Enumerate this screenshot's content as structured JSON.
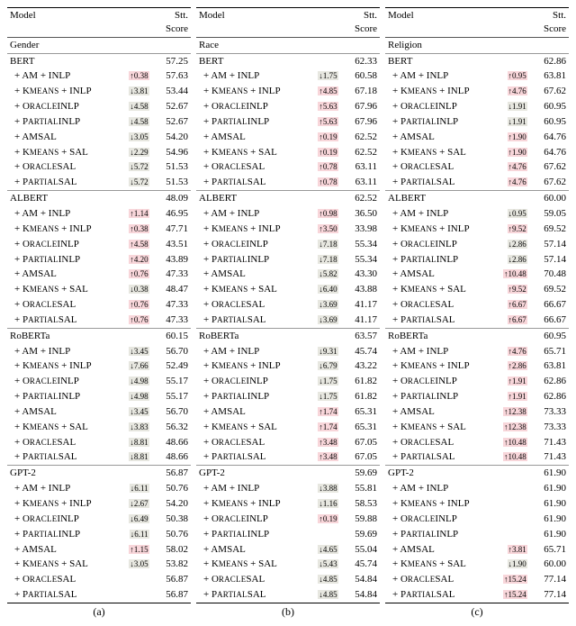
{
  "columns": [
    {
      "id": "a",
      "caption": "(a)",
      "category": "Gender"
    },
    {
      "id": "b",
      "caption": "(b)",
      "category": "Race"
    },
    {
      "id": "c",
      "caption": "(c)",
      "category": "Religion"
    }
  ],
  "header": {
    "model": "Model",
    "score": "Stt. Score"
  },
  "methods": [
    {
      "key": "base",
      "label": "",
      "base": true
    },
    {
      "key": "am_inlp",
      "label": "+ AM + INLP"
    },
    {
      "key": "kmeans_inlp",
      "label": "+ KMEANS + INLP",
      "sc": true,
      "sc_text": " + INLP"
    },
    {
      "key": "oracle_inlp",
      "label": "+ ORACLEINLP",
      "sc": true
    },
    {
      "key": "partial_inlp",
      "label": "+ PARTIALINLP",
      "sc": true
    },
    {
      "key": "amsal",
      "label": "+ AMSAL"
    },
    {
      "key": "kmeans_sal",
      "label": "+ KMEANS + SAL",
      "sc": true,
      "sc_text": " + SAL"
    },
    {
      "key": "oracle_sal",
      "label": "+ ORACLESAL",
      "sc": true
    },
    {
      "key": "partial_sal",
      "label": "+ PARTIALSAL",
      "sc": true
    }
  ],
  "models": [
    "BERT",
    "ALBERT",
    "RoBERTa",
    "GPT-2"
  ],
  "data": {
    "a": {
      "BERT": {
        "base": {
          "score": "57.25"
        },
        "am_inlp": {
          "delta": "0.38",
          "dir": "up",
          "bg": "pink",
          "score": "57.63"
        },
        "kmeans_inlp": {
          "delta": "3.81",
          "dir": "down",
          "bg": "gray",
          "score": "53.44"
        },
        "oracle_inlp": {
          "delta": "4.58",
          "dir": "down",
          "bg": "gray",
          "score": "52.67"
        },
        "partial_inlp": {
          "delta": "4.58",
          "dir": "down",
          "bg": "gray",
          "score": "52.67"
        },
        "amsal": {
          "delta": "3.05",
          "dir": "down",
          "bg": "gray",
          "score": "54.20"
        },
        "kmeans_sal": {
          "delta": "2.29",
          "dir": "down",
          "bg": "gray",
          "score": "54.96"
        },
        "oracle_sal": {
          "delta": "5.72",
          "dir": "down",
          "bg": "gray",
          "score": "51.53"
        },
        "partial_sal": {
          "delta": "5.72",
          "dir": "down",
          "bg": "gray",
          "score": "51.53"
        }
      },
      "ALBERT": {
        "base": {
          "score": "48.09"
        },
        "am_inlp": {
          "delta": "1.14",
          "dir": "up",
          "bg": "pink",
          "score": "46.95"
        },
        "kmeans_inlp": {
          "delta": "0.38",
          "dir": "up",
          "bg": "pink",
          "score": "47.71"
        },
        "oracle_inlp": {
          "delta": "4.58",
          "dir": "up",
          "bg": "pink",
          "score": "43.51"
        },
        "partial_inlp": {
          "delta": "4.20",
          "dir": "up",
          "bg": "pink",
          "score": "43.89"
        },
        "amsal": {
          "delta": "0.76",
          "dir": "up",
          "bg": "pink",
          "score": "47.33"
        },
        "kmeans_sal": {
          "delta": "0.38",
          "dir": "down",
          "bg": "gray",
          "score": "48.47"
        },
        "oracle_sal": {
          "delta": "0.76",
          "dir": "up",
          "bg": "pink",
          "score": "47.33"
        },
        "partial_sal": {
          "delta": "0.76",
          "dir": "up",
          "bg": "pink",
          "score": "47.33"
        }
      },
      "RoBERTa": {
        "base": {
          "score": "60.15"
        },
        "am_inlp": {
          "delta": "3.45",
          "dir": "down",
          "bg": "gray",
          "score": "56.70"
        },
        "kmeans_inlp": {
          "delta": "7.66",
          "dir": "down",
          "bg": "gray",
          "score": "52.49"
        },
        "oracle_inlp": {
          "delta": "4.98",
          "dir": "down",
          "bg": "gray",
          "score": "55.17"
        },
        "partial_inlp": {
          "delta": "4.98",
          "dir": "down",
          "bg": "gray",
          "score": "55.17"
        },
        "amsal": {
          "delta": "3.45",
          "dir": "down",
          "bg": "gray",
          "score": "56.70"
        },
        "kmeans_sal": {
          "delta": "3.83",
          "dir": "down",
          "bg": "gray",
          "score": "56.32"
        },
        "oracle_sal": {
          "delta": "8.81",
          "dir": "down",
          "bg": "gray",
          "score": "48.66"
        },
        "partial_sal": {
          "delta": "8.81",
          "dir": "down",
          "bg": "gray",
          "score": "48.66"
        }
      },
      "GPT-2": {
        "base": {
          "score": "56.87"
        },
        "am_inlp": {
          "delta": "6.11",
          "dir": "down",
          "bg": "gray",
          "score": "50.76"
        },
        "kmeans_inlp": {
          "delta": "2.67",
          "dir": "down",
          "bg": "gray",
          "score": "54.20"
        },
        "oracle_inlp": {
          "delta": "6.49",
          "dir": "down",
          "bg": "gray",
          "score": "50.38"
        },
        "partial_inlp": {
          "delta": "6.11",
          "dir": "down",
          "bg": "gray",
          "score": "50.76"
        },
        "amsal": {
          "delta": "1.15",
          "dir": "up",
          "bg": "pink",
          "score": "58.02"
        },
        "kmeans_sal": {
          "delta": "3.05",
          "dir": "down",
          "bg": "gray",
          "score": "53.82"
        },
        "oracle_sal": {
          "delta": "",
          "dir": "",
          "bg": "",
          "score": "56.87"
        },
        "partial_sal": {
          "delta": "",
          "dir": "",
          "bg": "",
          "score": "56.87"
        }
      }
    },
    "b": {
      "BERT": {
        "base": {
          "score": "62.33"
        },
        "am_inlp": {
          "delta": "1.75",
          "dir": "down",
          "bg": "gray",
          "score": "60.58"
        },
        "kmeans_inlp": {
          "delta": "4.85",
          "dir": "up",
          "bg": "pink",
          "score": "67.18"
        },
        "oracle_inlp": {
          "delta": "5.63",
          "dir": "up",
          "bg": "pink",
          "score": "67.96"
        },
        "partial_inlp": {
          "delta": "5.63",
          "dir": "up",
          "bg": "pink",
          "score": "67.96"
        },
        "amsal": {
          "delta": "0.19",
          "dir": "up",
          "bg": "pink",
          "score": "62.52"
        },
        "kmeans_sal": {
          "delta": "0.19",
          "dir": "up",
          "bg": "pink",
          "score": "62.52"
        },
        "oracle_sal": {
          "delta": "0.78",
          "dir": "up",
          "bg": "pink",
          "score": "63.11"
        },
        "partial_sal": {
          "delta": "0.78",
          "dir": "up",
          "bg": "pink",
          "score": "63.11"
        }
      },
      "ALBERT": {
        "base": {
          "score": "62.52"
        },
        "am_inlp": {
          "delta": "0.98",
          "dir": "up",
          "bg": "pink",
          "score": "36.50"
        },
        "kmeans_inlp": {
          "delta": "3.50",
          "dir": "up",
          "bg": "pink",
          "score": "33.98"
        },
        "oracle_inlp": {
          "delta": "7.18",
          "dir": "down",
          "bg": "gray",
          "score": "55.34"
        },
        "partial_inlp": {
          "delta": "7.18",
          "dir": "down",
          "bg": "gray",
          "score": "55.34"
        },
        "amsal": {
          "delta": "5.82",
          "dir": "down",
          "bg": "gray",
          "score": "43.30"
        },
        "kmeans_sal": {
          "delta": "6.40",
          "dir": "down",
          "bg": "gray",
          "score": "43.88"
        },
        "oracle_sal": {
          "delta": "3.69",
          "dir": "down",
          "bg": "gray",
          "score": "41.17"
        },
        "partial_sal": {
          "delta": "3.69",
          "dir": "down",
          "bg": "gray",
          "score": "41.17"
        }
      },
      "RoBERTa": {
        "base": {
          "score": "63.57"
        },
        "am_inlp": {
          "delta": "9.31",
          "dir": "down",
          "bg": "gray",
          "score": "45.74"
        },
        "kmeans_inlp": {
          "delta": "6.79",
          "dir": "down",
          "bg": "gray",
          "score": "43.22"
        },
        "oracle_inlp": {
          "delta": "1.75",
          "dir": "down",
          "bg": "gray",
          "score": "61.82"
        },
        "partial_inlp": {
          "delta": "1.75",
          "dir": "down",
          "bg": "gray",
          "score": "61.82"
        },
        "amsal": {
          "delta": "1.74",
          "dir": "up",
          "bg": "pink",
          "score": "65.31"
        },
        "kmeans_sal": {
          "delta": "1.74",
          "dir": "up",
          "bg": "pink",
          "score": "65.31"
        },
        "oracle_sal": {
          "delta": "3.48",
          "dir": "up",
          "bg": "pink",
          "score": "67.05"
        },
        "partial_sal": {
          "delta": "3.48",
          "dir": "up",
          "bg": "pink",
          "score": "67.05"
        }
      },
      "GPT-2": {
        "base": {
          "score": "59.69"
        },
        "am_inlp": {
          "delta": "3.88",
          "dir": "down",
          "bg": "gray",
          "score": "55.81"
        },
        "kmeans_inlp": {
          "delta": "1.16",
          "dir": "down",
          "bg": "gray",
          "score": "58.53"
        },
        "oracle_inlp": {
          "delta": "0.19",
          "dir": "up",
          "bg": "pink",
          "score": "59.88"
        },
        "partial_inlp": {
          "delta": "",
          "dir": "",
          "bg": "",
          "score": "59.69"
        },
        "amsal": {
          "delta": "4.65",
          "dir": "down",
          "bg": "gray",
          "score": "55.04"
        },
        "kmeans_sal": {
          "delta": "5.43",
          "dir": "down",
          "bg": "gray",
          "score": "45.74"
        },
        "oracle_sal": {
          "delta": "4.85",
          "dir": "down",
          "bg": "gray",
          "score": "54.84"
        },
        "partial_sal": {
          "delta": "4.85",
          "dir": "down",
          "bg": "gray",
          "score": "54.84"
        }
      }
    },
    "c": {
      "BERT": {
        "base": {
          "score": "62.86"
        },
        "am_inlp": {
          "delta": "0.95",
          "dir": "up",
          "bg": "pink",
          "score": "63.81"
        },
        "kmeans_inlp": {
          "delta": "4.76",
          "dir": "up",
          "bg": "pink",
          "score": "67.62"
        },
        "oracle_inlp": {
          "delta": "1.91",
          "dir": "down",
          "bg": "gray",
          "score": "60.95"
        },
        "partial_inlp": {
          "delta": "1.91",
          "dir": "down",
          "bg": "gray",
          "score": "60.95"
        },
        "amsal": {
          "delta": "1.90",
          "dir": "up",
          "bg": "pink",
          "score": "64.76"
        },
        "kmeans_sal": {
          "delta": "1.90",
          "dir": "up",
          "bg": "pink",
          "score": "64.76"
        },
        "oracle_sal": {
          "delta": "4.76",
          "dir": "up",
          "bg": "pink",
          "score": "67.62"
        },
        "partial_sal": {
          "delta": "4.76",
          "dir": "up",
          "bg": "pink",
          "score": "67.62"
        }
      },
      "ALBERT": {
        "base": {
          "score": "60.00"
        },
        "am_inlp": {
          "delta": "0.95",
          "dir": "down",
          "bg": "gray",
          "score": "59.05"
        },
        "kmeans_inlp": {
          "delta": "9.52",
          "dir": "up",
          "bg": "pink",
          "score": "69.52"
        },
        "oracle_inlp": {
          "delta": "2.86",
          "dir": "down",
          "bg": "gray",
          "score": "57.14"
        },
        "partial_inlp": {
          "delta": "2.86",
          "dir": "down",
          "bg": "gray",
          "score": "57.14"
        },
        "amsal": {
          "delta": "10.48",
          "dir": "up",
          "bg": "pink",
          "score": "70.48"
        },
        "kmeans_sal": {
          "delta": "9.52",
          "dir": "up",
          "bg": "pink",
          "score": "69.52"
        },
        "oracle_sal": {
          "delta": "6.67",
          "dir": "up",
          "bg": "pink",
          "score": "66.67"
        },
        "partial_sal": {
          "delta": "6.67",
          "dir": "up",
          "bg": "pink",
          "score": "66.67"
        }
      },
      "RoBERTa": {
        "base": {
          "score": "60.95"
        },
        "am_inlp": {
          "delta": "4.76",
          "dir": "up",
          "bg": "pink",
          "score": "65.71"
        },
        "kmeans_inlp": {
          "delta": "2.86",
          "dir": "up",
          "bg": "pink",
          "score": "63.81"
        },
        "oracle_inlp": {
          "delta": "1.91",
          "dir": "up",
          "bg": "pink",
          "score": "62.86"
        },
        "partial_inlp": {
          "delta": "1.91",
          "dir": "up",
          "bg": "pink",
          "score": "62.86"
        },
        "amsal": {
          "delta": "12.38",
          "dir": "up",
          "bg": "pink",
          "score": "73.33"
        },
        "kmeans_sal": {
          "delta": "12.38",
          "dir": "up",
          "bg": "pink",
          "score": "73.33"
        },
        "oracle_sal": {
          "delta": "10.48",
          "dir": "up",
          "bg": "pink",
          "score": "71.43"
        },
        "partial_sal": {
          "delta": "10.48",
          "dir": "up",
          "bg": "pink",
          "score": "71.43"
        }
      },
      "GPT-2": {
        "base": {
          "score": "61.90"
        },
        "am_inlp": {
          "delta": "",
          "dir": "",
          "bg": "",
          "score": "61.90"
        },
        "kmeans_inlp": {
          "delta": "",
          "dir": "",
          "bg": "",
          "score": "61.90"
        },
        "oracle_inlp": {
          "delta": "",
          "dir": "",
          "bg": "",
          "score": "61.90"
        },
        "partial_inlp": {
          "delta": "",
          "dir": "",
          "bg": "",
          "score": "61.90"
        },
        "amsal": {
          "delta": "3.81",
          "dir": "up",
          "bg": "pink",
          "score": "65.71"
        },
        "kmeans_sal": {
          "delta": "1.90",
          "dir": "down",
          "bg": "gray",
          "score": "60.00"
        },
        "oracle_sal": {
          "delta": "15.24",
          "dir": "up",
          "bg": "pink",
          "score": "77.14"
        },
        "partial_sal": {
          "delta": "15.24",
          "dir": "up",
          "bg": "pink",
          "score": "77.14"
        }
      }
    }
  },
  "method_labels": {
    "am_inlp": {
      "prefix": " + AM + INLP",
      "plain": true
    },
    "kmeans_inlp": {
      "pre": " + K",
      "sc": "means",
      "post": " + INLP"
    },
    "oracle_inlp": {
      "pre": " + O",
      "sc": "racle",
      "post": "INLP"
    },
    "partial_inlp": {
      "pre": " + P",
      "sc": "artial",
      "post": "INLP"
    },
    "amsal": {
      "pre": " + AMSAL",
      "plain": true
    },
    "kmeans_sal": {
      "pre": " + K",
      "sc": "means",
      "post": " + SAL"
    },
    "oracle_sal": {
      "pre": " + O",
      "sc": "racle",
      "post": "SAL"
    },
    "partial_sal": {
      "pre": " + P",
      "sc": "artial",
      "post": "SAL"
    }
  }
}
